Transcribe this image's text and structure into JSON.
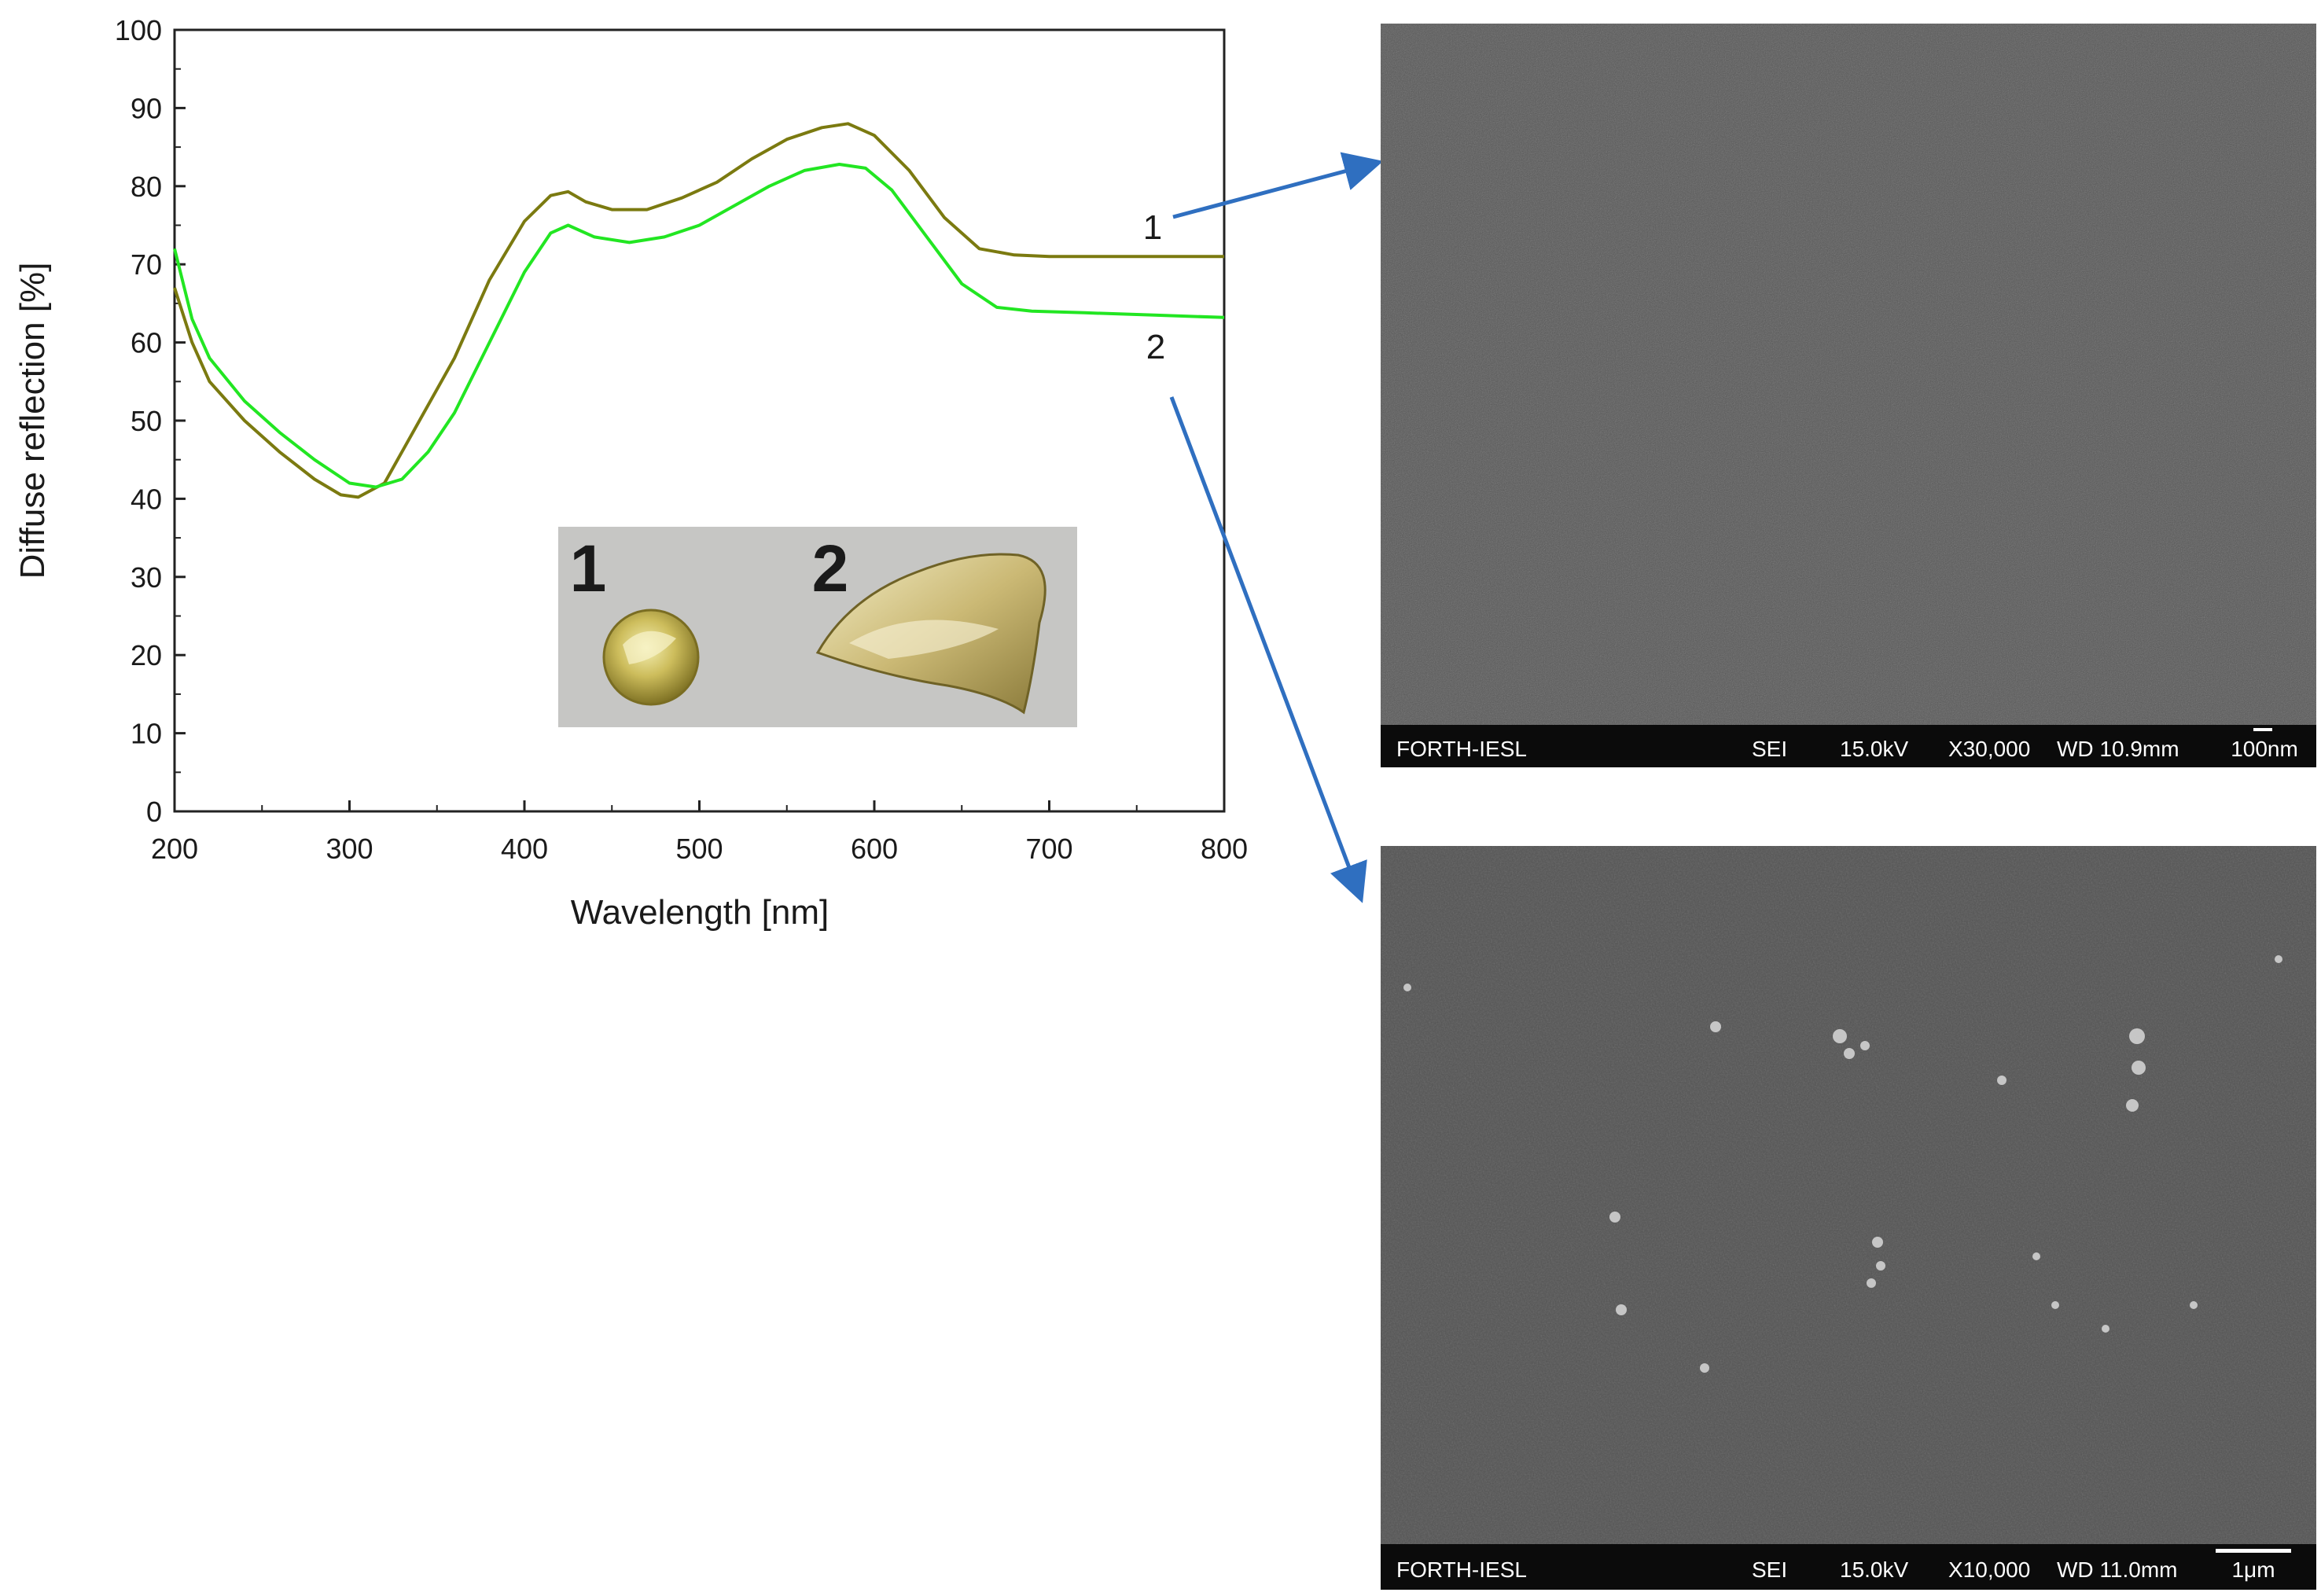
{
  "chart_data": {
    "type": "line",
    "title": "",
    "xlabel": "Wavelength [nm]",
    "ylabel": "Diffuse reflection [%]",
    "xlim": [
      200,
      800
    ],
    "ylim": [
      0,
      100
    ],
    "x_ticks": [
      200,
      300,
      400,
      500,
      600,
      700,
      800
    ],
    "y_ticks": [
      0,
      10,
      20,
      30,
      40,
      50,
      60,
      70,
      80,
      90,
      100
    ],
    "x_tick_labels": [
      "200",
      "300",
      "400",
      "500",
      "600",
      "700",
      "800"
    ],
    "y_tick_labels": [
      "0",
      "10",
      "20",
      "30",
      "40",
      "50",
      "60",
      "70",
      "80",
      "90",
      "100"
    ],
    "grid": false,
    "series": [
      {
        "name": "1",
        "color": "#7b7a10",
        "points": [
          [
            200,
            67
          ],
          [
            210,
            60
          ],
          [
            220,
            55
          ],
          [
            240,
            50
          ],
          [
            260,
            46
          ],
          [
            280,
            42.5
          ],
          [
            295,
            40.5
          ],
          [
            305,
            40.2
          ],
          [
            320,
            42
          ],
          [
            340,
            50
          ],
          [
            360,
            58
          ],
          [
            380,
            68
          ],
          [
            400,
            75.5
          ],
          [
            415,
            78.8
          ],
          [
            425,
            79.3
          ],
          [
            435,
            78
          ],
          [
            450,
            77
          ],
          [
            470,
            77
          ],
          [
            490,
            78.5
          ],
          [
            510,
            80.5
          ],
          [
            530,
            83.5
          ],
          [
            550,
            86
          ],
          [
            570,
            87.5
          ],
          [
            585,
            88
          ],
          [
            600,
            86.5
          ],
          [
            620,
            82
          ],
          [
            640,
            76
          ],
          [
            660,
            72
          ],
          [
            680,
            71.2
          ],
          [
            700,
            71
          ],
          [
            750,
            71
          ],
          [
            800,
            71
          ]
        ]
      },
      {
        "name": "2",
        "color": "#22e622",
        "points": [
          [
            200,
            72
          ],
          [
            210,
            63
          ],
          [
            220,
            58
          ],
          [
            240,
            52.5
          ],
          [
            260,
            48.5
          ],
          [
            280,
            45
          ],
          [
            300,
            42
          ],
          [
            315,
            41.5
          ],
          [
            330,
            42.5
          ],
          [
            345,
            46
          ],
          [
            360,
            51
          ],
          [
            380,
            60
          ],
          [
            400,
            69
          ],
          [
            415,
            74
          ],
          [
            425,
            75
          ],
          [
            440,
            73.5
          ],
          [
            460,
            72.8
          ],
          [
            480,
            73.5
          ],
          [
            500,
            75
          ],
          [
            520,
            77.5
          ],
          [
            540,
            80
          ],
          [
            560,
            82
          ],
          [
            580,
            82.8
          ],
          [
            595,
            82.3
          ],
          [
            610,
            79.5
          ],
          [
            630,
            73.5
          ],
          [
            650,
            67.5
          ],
          [
            670,
            64.5
          ],
          [
            690,
            64
          ],
          [
            720,
            63.8
          ],
          [
            760,
            63.5
          ],
          [
            800,
            63.2
          ]
        ]
      }
    ],
    "annotations": [
      {
        "text": "1",
        "points_to": "sem_image_1"
      },
      {
        "text": "2",
        "points_to": "sem_image_2"
      }
    ],
    "inset_photo_labels": [
      "1",
      "2"
    ]
  },
  "sem_images": [
    {
      "id": "sem_image_1",
      "lab": "FORTH-IESL",
      "mode": "SEI",
      "voltage": "15.0kV",
      "magnification": "X30,000",
      "wd": "WD 10.9mm",
      "scale": "100nm"
    },
    {
      "id": "sem_image_2",
      "lab": "FORTH-IESL",
      "mode": "SEI",
      "voltage": "15.0kV",
      "magnification": "X10,000",
      "wd": "WD 11.0mm",
      "scale": "1μm"
    }
  ],
  "colors": {
    "arrow": "#2f6fc0",
    "sem_background": "#555555",
    "info_bar": "#0b0b0b"
  }
}
